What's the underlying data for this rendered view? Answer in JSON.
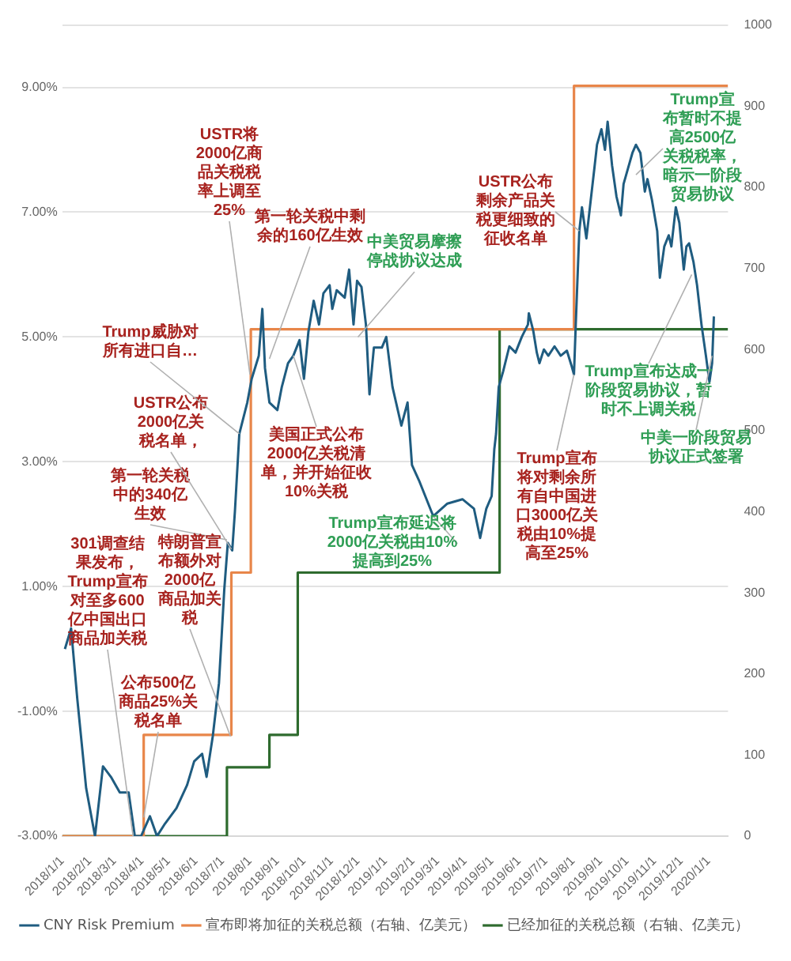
{
  "chart_data": {
    "type": "line",
    "legend": "bottom",
    "grid": "y",
    "xlim": [
      "2018-01-01",
      "2020-01-23"
    ],
    "xticks": [
      {
        "value": "2018-01-01",
        "label": "2018/1/1"
      },
      {
        "value": "2018-02-01",
        "label": "2018/2/1"
      },
      {
        "value": "2018-03-01",
        "label": "2018/3/1"
      },
      {
        "value": "2018-04-01",
        "label": "2018/4/1"
      },
      {
        "value": "2018-05-01",
        "label": "2018/5/1"
      },
      {
        "value": "2018-06-01",
        "label": "2018/6/1"
      },
      {
        "value": "2018-07-01",
        "label": "2018/7/1"
      },
      {
        "value": "2018-08-01",
        "label": "2018/8/1"
      },
      {
        "value": "2018-09-01",
        "label": "2018/9/1"
      },
      {
        "value": "2018-10-01",
        "label": "2018/10/1"
      },
      {
        "value": "2018-11-01",
        "label": "2018/11/1"
      },
      {
        "value": "2018-12-01",
        "label": "2018/12/1"
      },
      {
        "value": "2019-01-01",
        "label": "2019/1/1"
      },
      {
        "value": "2019-02-01",
        "label": "2019/2/1"
      },
      {
        "value": "2019-03-01",
        "label": "2019/3/1"
      },
      {
        "value": "2019-04-01",
        "label": "2019/4/1"
      },
      {
        "value": "2019-05-01",
        "label": "2019/5/1"
      },
      {
        "value": "2019-06-01",
        "label": "2019/6/1"
      },
      {
        "value": "2019-07-01",
        "label": "2019/7/1"
      },
      {
        "value": "2019-08-01",
        "label": "2019/8/1"
      },
      {
        "value": "2019-09-01",
        "label": "2019/9/1"
      },
      {
        "value": "2019-10-01",
        "label": "2019/10/1"
      },
      {
        "value": "2019-11-01",
        "label": "2019/11/1"
      },
      {
        "value": "2019-12-01",
        "label": "2019/12/1"
      },
      {
        "value": "2020-01-01",
        "label": "2020/1/1"
      }
    ],
    "ylim": [
      -3,
      10
    ],
    "yticks": [
      {
        "value": -3,
        "label": "-3.00%"
      },
      {
        "value": -1,
        "label": "-1.00%"
      },
      {
        "value": 1,
        "label": "1.00%"
      },
      {
        "value": 3,
        "label": "3.00%"
      },
      {
        "value": 5,
        "label": "5.00%"
      },
      {
        "value": 7,
        "label": "7.00%"
      },
      {
        "value": 9,
        "label": "9.00%"
      },
      {
        "value": 10,
        "label": null
      }
    ],
    "y2lim": [
      0,
      1000
    ],
    "y2ticks": [
      0,
      100,
      200,
      300,
      400,
      500,
      600,
      700,
      800,
      900,
      1000
    ],
    "series": [
      {
        "name": "CNY Risk Premium",
        "type": "line",
        "color": "#1f5c80",
        "x": [
          "2018-01-04",
          "2018-01-11",
          "2018-01-18",
          "2018-01-28",
          "2018-02-07",
          "2018-02-16",
          "2018-02-25",
          "2018-03-07",
          "2018-03-17",
          "2018-03-24",
          "2018-03-31",
          "2018-04-10",
          "2018-04-18",
          "2018-04-27",
          "2018-05-10",
          "2018-05-22",
          "2018-05-30",
          "2018-06-08",
          "2018-06-13",
          "2018-06-20",
          "2018-06-27",
          "2018-07-03",
          "2018-07-07",
          "2018-07-12",
          "2018-07-15",
          "2018-07-20",
          "2018-07-29",
          "2018-08-03",
          "2018-08-11",
          "2018-08-15",
          "2018-08-18",
          "2018-08-23",
          "2018-09-01",
          "2018-09-06",
          "2018-09-13",
          "2018-09-19",
          "2018-09-26",
          "2018-10-01",
          "2018-10-06",
          "2018-10-12",
          "2018-10-18",
          "2018-10-23",
          "2018-10-30",
          "2018-11-02",
          "2018-11-07",
          "2018-11-16",
          "2018-11-21",
          "2018-11-26",
          "2018-11-30",
          "2018-12-05",
          "2018-12-10",
          "2018-12-14",
          "2018-12-19",
          "2018-12-28",
          "2019-01-02",
          "2019-01-09",
          "2019-01-19",
          "2019-01-26",
          "2019-01-31",
          "2019-02-08",
          "2019-02-24",
          "2019-03-12",
          "2019-03-29",
          "2019-04-11",
          "2019-04-18",
          "2019-04-25",
          "2019-05-01",
          "2019-05-04",
          "2019-05-06",
          "2019-05-09",
          "2019-05-14",
          "2019-05-21",
          "2019-05-28",
          "2019-06-04",
          "2019-06-11",
          "2019-06-12",
          "2019-06-17",
          "2019-06-21",
          "2019-06-24",
          "2019-06-29",
          "2019-07-04",
          "2019-07-11",
          "2019-07-18",
          "2019-07-25",
          "2019-07-30",
          "2019-08-02",
          "2019-08-04",
          "2019-08-08",
          "2019-08-11",
          "2019-08-16",
          "2019-08-20",
          "2019-08-25",
          "2019-08-28",
          "2019-09-02",
          "2019-09-06",
          "2019-09-09",
          "2019-09-14",
          "2019-09-19",
          "2019-09-24",
          "2019-09-27",
          "2019-10-02",
          "2019-10-07",
          "2019-10-11",
          "2019-10-16",
          "2019-10-21",
          "2019-10-24",
          "2019-10-29",
          "2019-11-04",
          "2019-11-07",
          "2019-11-12",
          "2019-11-17",
          "2019-11-20",
          "2019-11-25",
          "2019-11-29",
          "2019-12-04",
          "2019-12-07",
          "2019-12-10",
          "2019-12-15",
          "2019-12-19",
          "2019-12-24",
          "2019-12-29",
          "2020-01-02",
          "2020-01-05",
          "2020-01-07"
        ],
        "values": [
          0.0,
          0.33,
          -0.8,
          -2.23,
          -3.0,
          -1.88,
          -2.05,
          -2.3,
          -2.3,
          -3.0,
          -3.0,
          -2.68,
          -3.0,
          -2.8,
          -2.55,
          -2.18,
          -1.8,
          -1.68,
          -2.05,
          -1.4,
          -0.55,
          0.95,
          1.7,
          1.58,
          2.2,
          3.45,
          3.95,
          4.33,
          4.7,
          5.45,
          4.5,
          3.95,
          3.83,
          4.2,
          4.58,
          4.7,
          4.95,
          4.33,
          5.08,
          5.58,
          5.2,
          5.7,
          5.83,
          5.45,
          5.75,
          5.63,
          6.08,
          5.2,
          5.9,
          5.8,
          5.2,
          4.08,
          4.83,
          4.83,
          5.0,
          4.2,
          3.58,
          3.95,
          2.95,
          2.7,
          2.13,
          2.33,
          2.4,
          2.25,
          1.78,
          2.25,
          2.45,
          3.2,
          3.45,
          4.2,
          4.45,
          4.85,
          4.75,
          5.0,
          5.2,
          5.38,
          5.1,
          4.75,
          4.58,
          4.8,
          4.7,
          4.85,
          4.7,
          4.78,
          4.55,
          4.4,
          5.2,
          6.7,
          7.08,
          6.58,
          7.08,
          7.7,
          8.08,
          8.33,
          8.0,
          8.45,
          7.75,
          7.25,
          6.95,
          7.45,
          7.7,
          7.95,
          8.08,
          7.95,
          7.33,
          7.53,
          7.2,
          6.7,
          5.95,
          6.45,
          6.63,
          6.45,
          7.08,
          6.83,
          6.08,
          6.45,
          6.5,
          6.2,
          5.83,
          5.2,
          4.7,
          4.28,
          4.58,
          5.33
        ]
      },
      {
        "name": "宣布即将加征的关税总额（右轴、亿美元）",
        "type": "step",
        "axis": "y2",
        "color": "#e8864a",
        "x": [
          "2018-01-01",
          "2018-04-03",
          "2018-07-11",
          "2018-08-02",
          "2019-08-02",
          "2020-01-23"
        ],
        "values": [
          0,
          125,
          325,
          625,
          925,
          925
        ]
      },
      {
        "name": "已经加征的关税总额（右轴、亿美元）",
        "type": "step",
        "axis": "y2",
        "color": "#2e6b2e",
        "x": [
          "2018-01-01",
          "2018-07-06",
          "2018-08-23",
          "2018-09-24",
          "2019-05-10",
          "2020-01-23"
        ],
        "values": [
          0,
          85,
          125,
          325,
          625,
          625
        ]
      }
    ],
    "annotations": [
      {
        "text": "301调查结果发布，Trump宣布对至多600亿中国出口商品加关税",
        "x": "2018-03-22",
        "y": -3.0
      },
      {
        "text": "公布500亿商品25%关税名单",
        "x": "2018-04-03",
        "y": -2.7
      },
      {
        "text": "第一轮关税中的340亿生效",
        "x": "2018-07-06",
        "y": 1.75
      },
      {
        "text": "特朗普宣布额外对2000亿商品加关税",
        "x": "2018-07-10",
        "y": -1.4
      },
      {
        "text": "USTR公布2000亿关税名单，",
        "x": "2018-07-11",
        "y": 1.6
      },
      {
        "text": "Trump威胁对所有进口自…",
        "x": "2018-07-20",
        "y": 3.45
      },
      {
        "text": "USTR将2000亿商品关税税率上调至25%",
        "x": "2018-08-01",
        "y": 4.4
      },
      {
        "text": "第一轮关税中剩余的160亿生效",
        "x": "2018-08-23",
        "y": 4.65
      },
      {
        "text": "美国正式公布2000亿关税清单，并开始征收10%关税",
        "x": "2018-09-19",
        "y": 4.7
      },
      {
        "text": "中美贸易摩擦停战协议达成",
        "x": "2018-12-01",
        "y": 5.0
      },
      {
        "text": "Trump宣布延迟将2000亿关税由10%提高到25%",
        "x": "2019-02-24",
        "y": 2.13
      },
      {
        "text": "USTR公布剩余产品关税更细致的征收名单",
        "x": "2019-08-08",
        "y": 6.7
      },
      {
        "text": "Trump宣布将对剩余所有自中国进口3000亿关税由10%提高至25%",
        "x": "2019-08-02",
        "y": 4.4
      },
      {
        "text": "Trump宣布暂时不提高2500亿关税税率，暗示一阶段贸易协议",
        "x": "2019-10-11",
        "y": 7.6
      },
      {
        "text": "Trump宣布达成一阶段贸易协议，暂时不上调关税",
        "x": "2019-12-13",
        "y": 6.0
      },
      {
        "text": "中美一阶段贸易协议正式签署",
        "x": "2020-01-05",
        "y": 4.7
      }
    ]
  }
}
